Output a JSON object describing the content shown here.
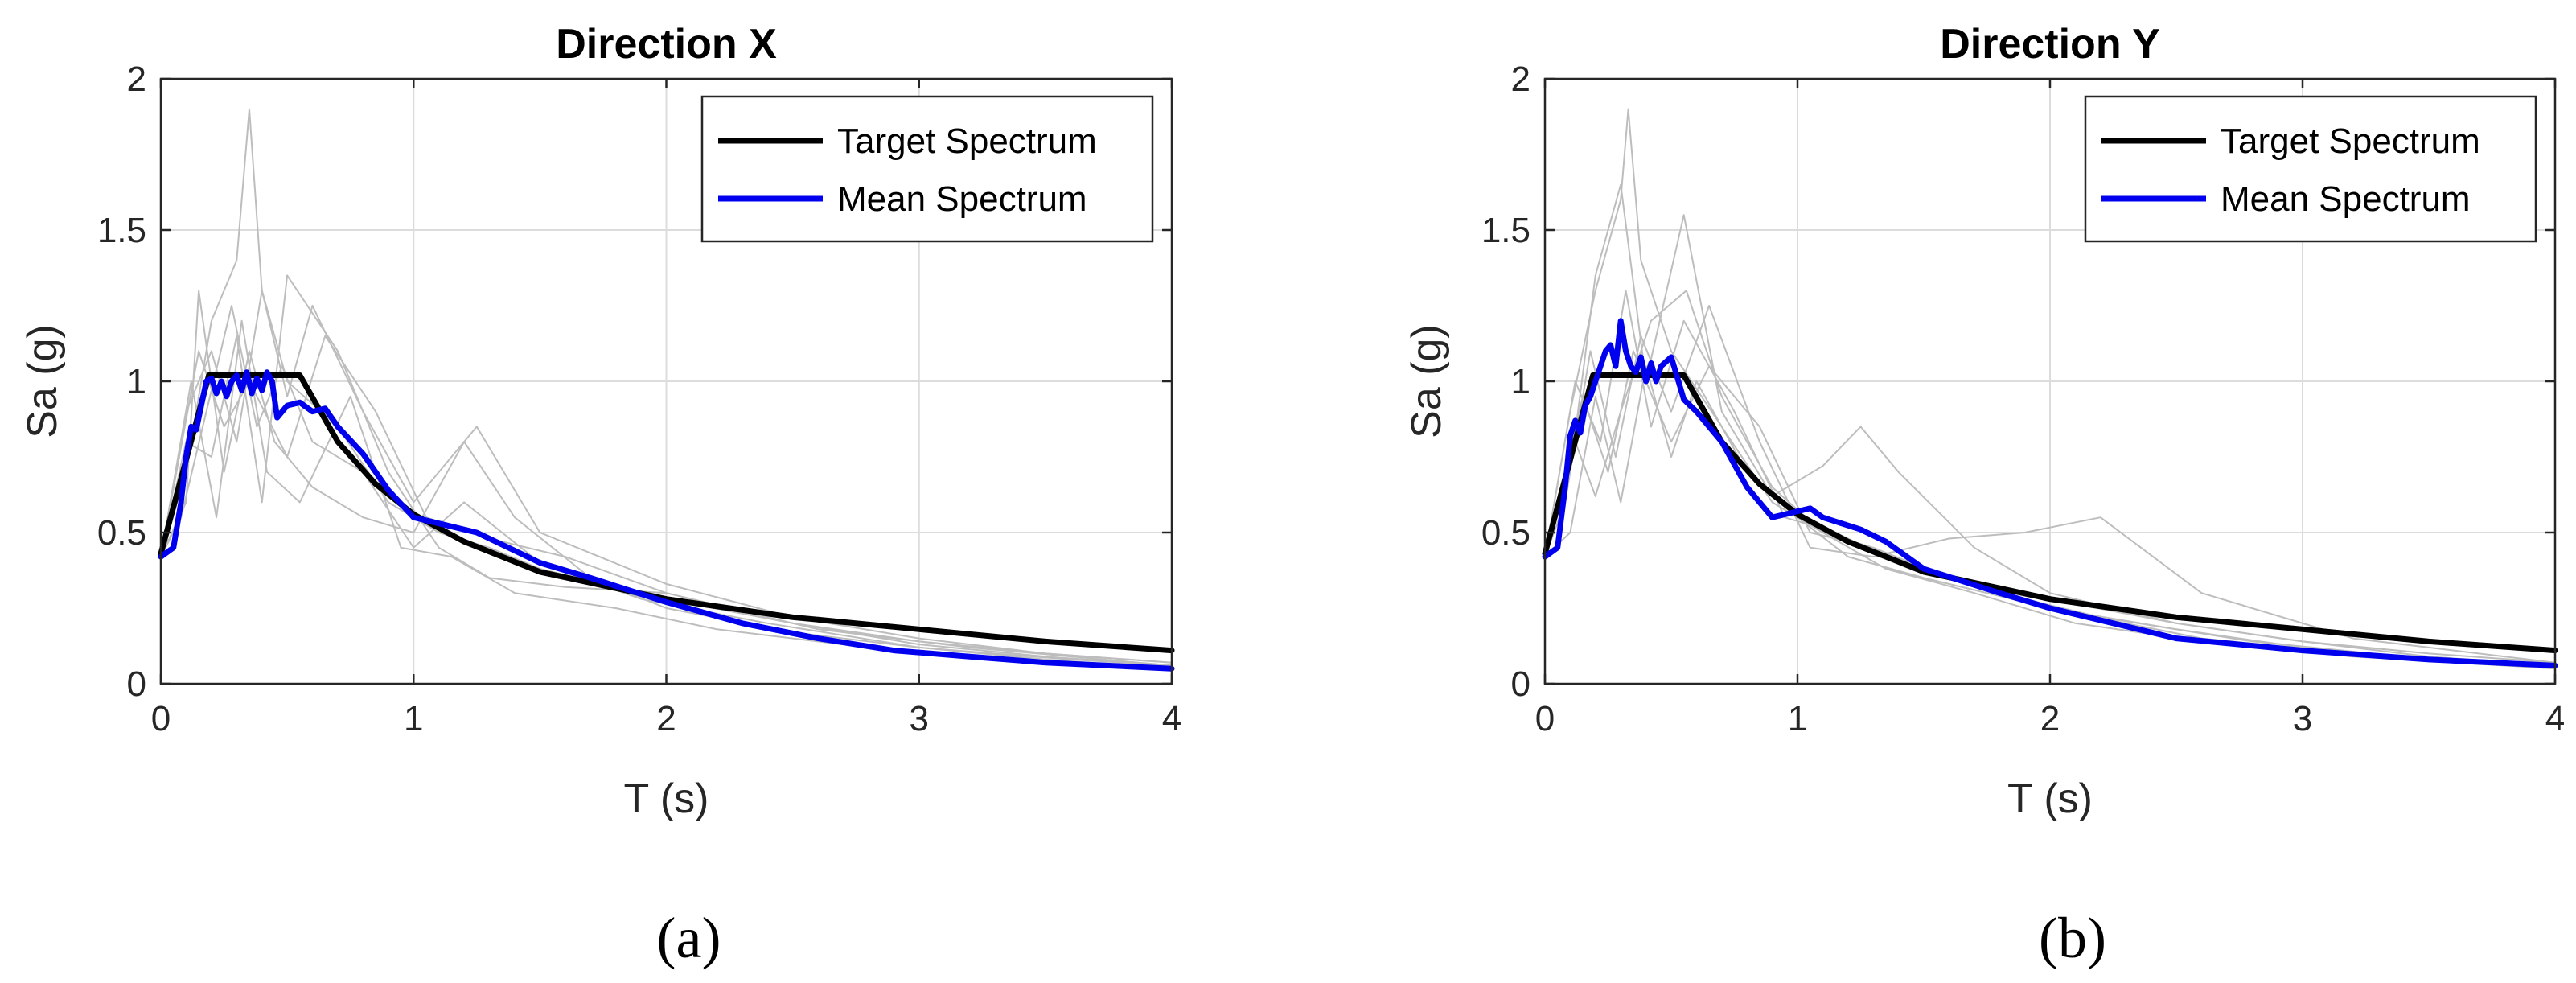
{
  "colors": {
    "target": "#000000",
    "mean": "#0000ee",
    "records": "#bdbdbd",
    "grid": "#dcdcdc",
    "axis": "#262626"
  },
  "chart_data": [
    {
      "type": "line",
      "panel_label": "(a)",
      "title": "Direction X",
      "xlabel": "T (s)",
      "ylabel": "Sa (g)",
      "xlim": [
        0,
        4
      ],
      "ylim": [
        0,
        2
      ],
      "xticks": [
        0,
        1,
        2,
        3,
        4
      ],
      "yticks": [
        0,
        0.5,
        1,
        1.5,
        2
      ],
      "xtick_labels": [
        "0",
        "1",
        "2",
        "3",
        "4"
      ],
      "ytick_labels": [
        "0",
        "0.5",
        "1",
        "1.5",
        "2"
      ],
      "grid": true,
      "legend": "top-right",
      "series": [
        {
          "name": "Target Spectrum",
          "role": "target",
          "x": [
            0,
            0.19,
            0.55,
            0.7,
            0.85,
            1.0,
            1.2,
            1.5,
            2.0,
            2.5,
            3.0,
            3.5,
            4.0
          ],
          "y": [
            0.43,
            1.02,
            1.02,
            0.8,
            0.66,
            0.56,
            0.47,
            0.37,
            0.28,
            0.22,
            0.18,
            0.14,
            0.11
          ]
        },
        {
          "name": "Mean Spectrum",
          "role": "mean",
          "x": [
            0,
            0.05,
            0.08,
            0.1,
            0.12,
            0.14,
            0.16,
            0.18,
            0.2,
            0.22,
            0.24,
            0.26,
            0.28,
            0.3,
            0.32,
            0.34,
            0.36,
            0.38,
            0.4,
            0.42,
            0.44,
            0.46,
            0.5,
            0.55,
            0.6,
            0.65,
            0.7,
            0.8,
            0.9,
            1.0,
            1.1,
            1.25,
            1.35,
            1.5,
            1.7,
            2.0,
            2.3,
            2.6,
            2.9,
            3.2,
            3.5,
            4.0
          ],
          "y": [
            0.42,
            0.45,
            0.6,
            0.75,
            0.85,
            0.84,
            0.92,
            1.0,
            1.01,
            0.96,
            1.0,
            0.95,
            1.0,
            1.02,
            0.97,
            1.03,
            0.96,
            1.01,
            0.97,
            1.03,
            1.0,
            0.88,
            0.92,
            0.93,
            0.9,
            0.91,
            0.85,
            0.76,
            0.64,
            0.55,
            0.53,
            0.5,
            0.46,
            0.4,
            0.35,
            0.27,
            0.2,
            0.15,
            0.11,
            0.09,
            0.07,
            0.05
          ]
        },
        {
          "name": "",
          "role": "record",
          "x": [
            0,
            0.1,
            0.2,
            0.3,
            0.35,
            0.4,
            0.5,
            0.7,
            0.9,
            1.1,
            1.3,
            1.5,
            2.0,
            2.5,
            3.0,
            3.5,
            4.0
          ],
          "y": [
            0.42,
            0.7,
            1.2,
            1.4,
            1.9,
            1.3,
            1.0,
            0.85,
            0.6,
            0.5,
            0.45,
            0.38,
            0.28,
            0.2,
            0.14,
            0.1,
            0.07
          ]
        },
        {
          "name": "",
          "role": "record",
          "x": [
            0,
            0.1,
            0.2,
            0.3,
            0.4,
            0.5,
            0.6,
            0.8,
            1.0,
            1.25,
            1.5,
            2.0,
            2.5,
            3.0,
            3.5,
            4.0
          ],
          "y": [
            0.42,
            0.9,
            1.1,
            0.8,
            1.3,
            0.95,
            1.25,
            0.9,
            0.6,
            0.85,
            0.5,
            0.33,
            0.22,
            0.15,
            0.1,
            0.07
          ]
        },
        {
          "name": "",
          "role": "record",
          "x": [
            0,
            0.1,
            0.15,
            0.25,
            0.35,
            0.45,
            0.6,
            0.8,
            1.0,
            1.2,
            1.4,
            1.7,
            2.0,
            2.5,
            3.0,
            3.5,
            4.0
          ],
          "y": [
            0.42,
            0.6,
            1.3,
            0.7,
            1.1,
            0.8,
            0.65,
            0.55,
            0.5,
            0.8,
            0.55,
            0.35,
            0.25,
            0.17,
            0.12,
            0.08,
            0.05
          ]
        },
        {
          "name": "",
          "role": "record",
          "x": [
            0,
            0.1,
            0.2,
            0.3,
            0.4,
            0.5,
            0.7,
            0.9,
            1.1,
            1.3,
            1.6,
            2.0,
            2.5,
            3.0,
            3.5,
            4.0
          ],
          "y": [
            0.42,
            0.8,
            0.75,
            1.15,
            0.6,
            1.35,
            1.1,
            0.7,
            0.45,
            0.35,
            0.32,
            0.3,
            0.2,
            0.13,
            0.09,
            0.06
          ]
        },
        {
          "name": "",
          "role": "record",
          "x": [
            0,
            0.12,
            0.22,
            0.32,
            0.42,
            0.55,
            0.75,
            0.95,
            1.15,
            1.4,
            1.8,
            2.2,
            2.8,
            3.4,
            4.0
          ],
          "y": [
            0.42,
            1.0,
            0.55,
            1.2,
            0.7,
            0.6,
            0.95,
            0.45,
            0.42,
            0.3,
            0.25,
            0.18,
            0.12,
            0.08,
            0.05
          ]
        },
        {
          "name": "",
          "role": "record",
          "x": [
            0,
            0.15,
            0.25,
            0.35,
            0.5,
            0.65,
            0.85,
            1.05,
            1.3,
            1.6,
            2.0,
            2.6,
            3.2,
            4.0
          ],
          "y": [
            0.42,
            1.1,
            0.85,
            1.0,
            0.75,
            1.15,
            0.9,
            0.55,
            0.48,
            0.42,
            0.3,
            0.18,
            0.12,
            0.06
          ]
        },
        {
          "name": "",
          "role": "record",
          "x": [
            0,
            0.08,
            0.18,
            0.28,
            0.38,
            0.48,
            0.6,
            0.8,
            1.0,
            1.2,
            1.5,
            1.9,
            2.4,
            3.0,
            3.6,
            4.0
          ],
          "y": [
            0.42,
            0.55,
            0.9,
            1.25,
            0.85,
            1.05,
            0.8,
            0.7,
            0.45,
            0.6,
            0.4,
            0.28,
            0.2,
            0.12,
            0.08,
            0.06
          ]
        }
      ]
    },
    {
      "type": "line",
      "panel_label": "(b)",
      "title": "Direction Y",
      "xlabel": "T (s)",
      "ylabel": "Sa (g)",
      "xlim": [
        0,
        4
      ],
      "ylim": [
        0,
        2
      ],
      "xticks": [
        0,
        1,
        2,
        3,
        4
      ],
      "yticks": [
        0,
        0.5,
        1,
        1.5,
        2
      ],
      "xtick_labels": [
        "0",
        "1",
        "2",
        "3",
        "4"
      ],
      "ytick_labels": [
        "0",
        "0.5",
        "1",
        "1.5",
        "2"
      ],
      "grid": true,
      "legend": "top-right",
      "series": [
        {
          "name": "Target Spectrum",
          "role": "target",
          "x": [
            0,
            0.19,
            0.55,
            0.7,
            0.85,
            1.0,
            1.2,
            1.5,
            2.0,
            2.5,
            3.0,
            3.5,
            4.0
          ],
          "y": [
            0.43,
            1.02,
            1.02,
            0.8,
            0.66,
            0.56,
            0.47,
            0.37,
            0.28,
            0.22,
            0.18,
            0.14,
            0.11
          ]
        },
        {
          "name": "Mean Spectrum",
          "role": "mean",
          "x": [
            0,
            0.05,
            0.08,
            0.1,
            0.12,
            0.14,
            0.16,
            0.18,
            0.2,
            0.22,
            0.24,
            0.26,
            0.28,
            0.3,
            0.32,
            0.34,
            0.36,
            0.38,
            0.4,
            0.42,
            0.44,
            0.46,
            0.5,
            0.55,
            0.6,
            0.7,
            0.8,
            0.9,
            1.0,
            1.05,
            1.1,
            1.25,
            1.35,
            1.5,
            1.8,
            2.0,
            2.5,
            3.0,
            3.5,
            4.0
          ],
          "y": [
            0.42,
            0.45,
            0.65,
            0.82,
            0.87,
            0.83,
            0.92,
            0.95,
            1.0,
            1.05,
            1.1,
            1.12,
            1.05,
            1.2,
            1.1,
            1.05,
            1.03,
            1.08,
            1.0,
            1.06,
            1.0,
            1.05,
            1.08,
            0.94,
            0.9,
            0.8,
            0.65,
            0.55,
            0.57,
            0.58,
            0.55,
            0.51,
            0.47,
            0.38,
            0.3,
            0.25,
            0.15,
            0.11,
            0.08,
            0.06
          ]
        },
        {
          "name": "",
          "role": "record",
          "x": [
            0,
            0.1,
            0.2,
            0.3,
            0.33,
            0.38,
            0.5,
            0.7,
            0.9,
            1.1,
            1.3,
            1.5,
            2.0,
            2.5,
            3.0,
            3.5,
            4.0
          ],
          "y": [
            0.42,
            0.9,
            1.3,
            1.6,
            1.9,
            1.4,
            1.1,
            0.85,
            0.6,
            0.5,
            0.45,
            0.38,
            0.28,
            0.2,
            0.14,
            0.1,
            0.07
          ]
        },
        {
          "name": "",
          "role": "record",
          "x": [
            0,
            0.1,
            0.2,
            0.3,
            0.4,
            0.55,
            0.7,
            0.9,
            1.1,
            1.25,
            1.4,
            1.7,
            2.0,
            2.5,
            3.0,
            3.5,
            4.0
          ],
          "y": [
            0.42,
            0.7,
            1.35,
            1.65,
            1.0,
            1.55,
            0.9,
            0.62,
            0.72,
            0.85,
            0.7,
            0.45,
            0.3,
            0.2,
            0.14,
            0.09,
            0.06
          ]
        },
        {
          "name": "",
          "role": "record",
          "x": [
            0,
            0.12,
            0.22,
            0.32,
            0.42,
            0.55,
            0.75,
            0.95,
            1.15,
            1.4,
            1.8,
            2.2,
            2.8,
            3.4,
            4.0
          ],
          "y": [
            0.42,
            1.0,
            0.8,
            1.3,
            0.85,
            1.2,
            0.9,
            0.55,
            0.5,
            0.4,
            0.3,
            0.22,
            0.14,
            0.09,
            0.05
          ]
        },
        {
          "name": "",
          "role": "record",
          "x": [
            0,
            0.08,
            0.18,
            0.28,
            0.38,
            0.5,
            0.65,
            0.85,
            1.05,
            1.3,
            1.6,
            1.9,
            2.2,
            2.6,
            3.2,
            4.0
          ],
          "y": [
            0.42,
            0.6,
            1.1,
            0.75,
            1.15,
            0.9,
            1.25,
            0.8,
            0.45,
            0.42,
            0.48,
            0.5,
            0.55,
            0.3,
            0.15,
            0.07
          ]
        },
        {
          "name": "",
          "role": "record",
          "x": [
            0,
            0.15,
            0.25,
            0.35,
            0.5,
            0.65,
            0.85,
            1.05,
            1.3,
            1.6,
            2.0,
            2.6,
            3.2,
            4.0
          ],
          "y": [
            0.42,
            0.95,
            0.7,
            1.1,
            0.8,
            1.05,
            0.85,
            0.5,
            0.45,
            0.35,
            0.25,
            0.15,
            0.1,
            0.05
          ]
        },
        {
          "name": "",
          "role": "record",
          "x": [
            0,
            0.1,
            0.2,
            0.3,
            0.4,
            0.5,
            0.6,
            0.8,
            1.0,
            1.2,
            1.5,
            2.0,
            2.5,
            3.0,
            3.5,
            4.0
          ],
          "y": [
            0.42,
            0.5,
            0.95,
            0.6,
            1.05,
            0.75,
            1.0,
            0.7,
            0.55,
            0.42,
            0.35,
            0.25,
            0.18,
            0.12,
            0.08,
            0.05
          ]
        },
        {
          "name": "",
          "role": "record",
          "x": [
            0,
            0.12,
            0.2,
            0.3,
            0.42,
            0.56,
            0.7,
            0.9,
            1.1,
            1.35,
            1.7,
            2.1,
            2.6,
            3.2,
            4.0
          ],
          "y": [
            0.42,
            0.8,
            0.62,
            0.9,
            1.2,
            1.3,
            0.95,
            0.65,
            0.5,
            0.38,
            0.3,
            0.2,
            0.14,
            0.09,
            0.05
          ]
        }
      ]
    }
  ]
}
